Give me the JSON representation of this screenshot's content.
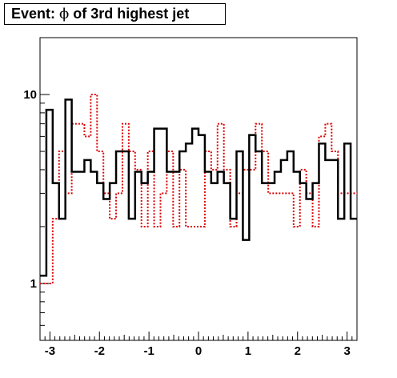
{
  "title": {
    "prefix": "Event: ",
    "symbol": "ϕ",
    "suffix": " of 3rd highest jet"
  },
  "colors": {
    "series_primary": "#000000",
    "series_secondary": "#dd0000",
    "frame": "#000000",
    "background": "#ffffff"
  },
  "chart_data": {
    "type": "line",
    "drawstyle": "steps",
    "xlim": [
      -3.2,
      3.2
    ],
    "ylim": [
      0.5,
      20
    ],
    "yscale": "log",
    "xticks": [
      -3,
      -2,
      -1,
      0,
      1,
      2,
      3
    ],
    "xtick_labels": [
      "-3",
      "-2",
      "-1",
      "0",
      "1",
      "2",
      "3"
    ],
    "yticks": [
      1,
      10
    ],
    "ytick_labels": [
      "1",
      "10"
    ],
    "grid": false,
    "bins": 50,
    "series": [
      {
        "style": "solid",
        "color": "#000000",
        "values": [
          1.1,
          8.3,
          3.4,
          2.2,
          9.4,
          3.9,
          3.9,
          4.5,
          3.9,
          3.4,
          2.8,
          3.4,
          5.0,
          5.0,
          2.2,
          3.9,
          3.4,
          3.9,
          6.6,
          6.6,
          3.9,
          3.9,
          5.0,
          5.5,
          6.6,
          6.1,
          3.9,
          3.4,
          3.9,
          3.4,
          2.2,
          5.0,
          1.7,
          6.1,
          5.0,
          3.4,
          3.4,
          3.9,
          4.5,
          5.0,
          3.9,
          3.4,
          2.8,
          3.4,
          5.5,
          4.5,
          4.5,
          2.2,
          5.5,
          2.2
        ]
      },
      {
        "style": "dotted",
        "color": "#dd0000",
        "values": [
          1.0,
          1.0,
          2.2,
          5.0,
          3.0,
          7.0,
          7.0,
          6.0,
          10.0,
          5.0,
          3.0,
          2.2,
          3.0,
          7.0,
          5.0,
          4.0,
          2.0,
          5.0,
          2.0,
          3.0,
          5.0,
          2.0,
          4.0,
          2.0,
          2.0,
          2.0,
          5.0,
          4.0,
          7.0,
          4.0,
          2.0,
          3.0,
          4.0,
          4.0,
          7.0,
          5.0,
          3.0,
          3.0,
          3.0,
          3.0,
          2.0,
          4.0,
          3.0,
          2.0,
          6.0,
          7.0,
          5.0,
          3.0,
          3.0,
          3.0
        ]
      }
    ]
  }
}
